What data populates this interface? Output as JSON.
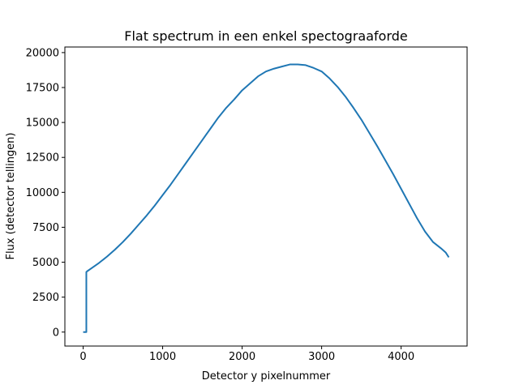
{
  "chart_data": {
    "type": "line",
    "title": "Flat spectrum in een enkel spectograaforde",
    "xlabel": "Detector y pixelnummer",
    "ylabel": "Flux (detector tellingen)",
    "xlim": [
      -230,
      4830
    ],
    "ylim": [
      -1000,
      20400
    ],
    "xticks": [
      0,
      1000,
      2000,
      3000,
      4000
    ],
    "yticks": [
      0,
      2500,
      5000,
      7500,
      10000,
      12500,
      15000,
      17500,
      20000
    ],
    "xtick_labels": [
      "0",
      "1000",
      "2000",
      "3000",
      "4000"
    ],
    "ytick_labels": [
      "0",
      "2500",
      "5000",
      "7500",
      "10000",
      "12500",
      "15000",
      "17500",
      "20000"
    ],
    "grid": false,
    "legend": "none",
    "series": [
      {
        "color": "#1f77b4",
        "x": [
          0,
          40,
          40,
          50,
          100,
          200,
          300,
          400,
          500,
          600,
          700,
          800,
          900,
          1000,
          1100,
          1200,
          1300,
          1400,
          1500,
          1600,
          1700,
          1800,
          1900,
          2000,
          2100,
          2200,
          2300,
          2400,
          2500,
          2600,
          2700,
          2800,
          2900,
          3000,
          3100,
          3200,
          3300,
          3400,
          3500,
          3600,
          3700,
          3800,
          3900,
          4000,
          4100,
          4200,
          4300,
          4400,
          4500,
          4560,
          4600
        ],
        "y": [
          0,
          0,
          4300,
          4350,
          4550,
          4950,
          5400,
          5900,
          6450,
          7050,
          7700,
          8350,
          9050,
          9800,
          10550,
          11350,
          12150,
          12950,
          13750,
          14550,
          15350,
          16050,
          16650,
          17300,
          17800,
          18300,
          18650,
          18850,
          19000,
          19150,
          19150,
          19100,
          18900,
          18650,
          18150,
          17550,
          16850,
          16050,
          15200,
          14250,
          13300,
          12300,
          11300,
          10250,
          9200,
          8150,
          7200,
          6450,
          6000,
          5700,
          5350
        ]
      }
    ]
  }
}
